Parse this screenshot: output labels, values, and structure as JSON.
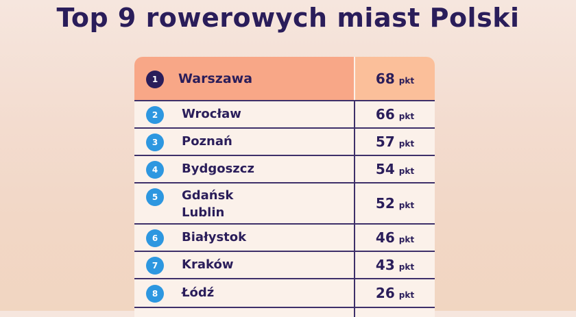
{
  "title": "Top 9 rowerowych miast Polski",
  "unit": "pkt",
  "rows": [
    {
      "rank": "1",
      "city": "Warszawa",
      "points": "68"
    },
    {
      "rank": "2",
      "city": "Wrocław",
      "points": "66"
    },
    {
      "rank": "3",
      "city": "Poznań",
      "points": "57"
    },
    {
      "rank": "4",
      "city": "Bydgoszcz",
      "points": "54"
    },
    {
      "rank": "5",
      "city": "Gdańsk",
      "city2": "Lublin",
      "points": "52"
    },
    {
      "rank": "6",
      "city": "Białystok",
      "points": "46"
    },
    {
      "rank": "7",
      "city": "Kraków",
      "points": "43"
    },
    {
      "rank": "8",
      "city": "Łódź",
      "points": "26"
    }
  ],
  "colors": {
    "title": "#2a1d5a",
    "highlight_row": "#f8a787",
    "badge": "#2d97e0",
    "badge_first": "#2a1d5a"
  }
}
